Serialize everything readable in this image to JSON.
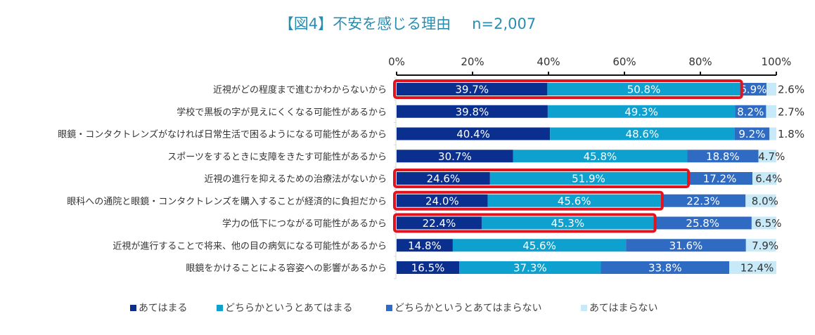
{
  "chart_data": {
    "type": "bar",
    "orientation": "horizontal",
    "stacked": "percent",
    "title": "【図4】不安を感じる理由",
    "sample_size": "n=2,007",
    "xlabel": "",
    "ylabel": "",
    "xlim": [
      0,
      100
    ],
    "x_ticks": [
      "0%",
      "20%",
      "40%",
      "60%",
      "80%",
      "100%"
    ],
    "x_axis_position": "top",
    "grid": false,
    "legend_position": "bottom",
    "categories": [
      "近視がどの程度まで進むかわからないから",
      "学校で黒板の字が見えにくくなる可能性があるから",
      "眼鏡・コンタクトレンズがなければ日常生活で困るようになる可能性があるから",
      "スポーツをするときに支障をきたす可能性があるから",
      "近視の進行を抑えるための治療法がないから",
      "眼科への通院と眼鏡・コンタクトレンズを購入することが経済的に負担だから",
      "学力の低下につながる可能性があるから",
      "近視が進行することで将来、他の目の病気になる可能性があるから",
      "眼鏡をかけることによる容姿への影響があるから"
    ],
    "series": [
      {
        "name": "あてはまる",
        "color": "#0a2f8f",
        "label_color": "#ffffff",
        "values": [
          39.7,
          39.8,
          40.4,
          30.7,
          24.6,
          24.0,
          22.4,
          14.8,
          16.5
        ]
      },
      {
        "name": "どちらかというとあてはまる",
        "color": "#0ea1cf",
        "label_color": "#ffffff",
        "values": [
          50.8,
          49.3,
          48.6,
          45.8,
          51.9,
          45.6,
          45.3,
          45.6,
          37.3
        ]
      },
      {
        "name": "どちらかというとあてはまらない",
        "color": "#2f6bc2",
        "label_color": "#ffffff",
        "values": [
          6.9,
          8.2,
          9.2,
          18.8,
          17.2,
          22.3,
          25.8,
          31.6,
          33.8
        ]
      },
      {
        "name": "あてはまらない",
        "color": "#c7e9f8",
        "label_color": "#333333",
        "values": [
          2.6,
          2.7,
          1.8,
          4.7,
          6.4,
          8.0,
          6.5,
          7.9,
          12.4
        ]
      }
    ],
    "value_labels": [
      [
        "39.7%",
        "50.8%",
        "6.9%",
        "2.6%"
      ],
      [
        "39.8%",
        "49.3%",
        "8.2%",
        "2.7%"
      ],
      [
        "40.4%",
        "48.6%",
        "9.2%",
        "1.8%"
      ],
      [
        "30.7%",
        "45.8%",
        "18.8%",
        "4.7%"
      ],
      [
        "24.6%",
        "51.9%",
        "17.2%",
        "6.4%"
      ],
      [
        "24.0%",
        "45.6%",
        "22.3%",
        "8.0%"
      ],
      [
        "22.4%",
        "45.3%",
        "25.8%",
        "6.5%"
      ],
      [
        "14.8%",
        "45.6%",
        "31.6%",
        "7.9%"
      ],
      [
        "16.5%",
        "37.3%",
        "33.8%",
        "12.4%"
      ]
    ],
    "annotations": {
      "highlight_color": "#e0141e",
      "highlighted_rows": [
        0,
        4,
        5,
        6
      ],
      "highlight_description": "Red boxes around the first two segments (あてはまる + どちらかというとあてはまる)"
    }
  },
  "title": {
    "text": "【図4】不安を感じる理由",
    "n": "n=2,007",
    "color": "#2a8db0"
  }
}
